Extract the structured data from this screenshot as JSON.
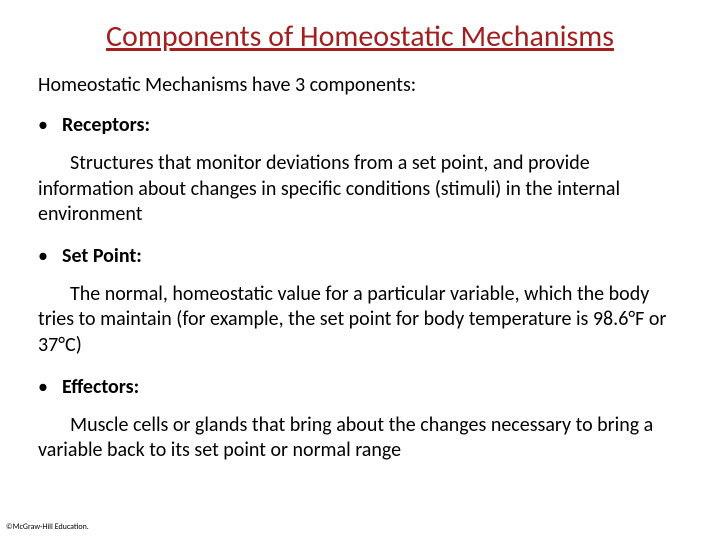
{
  "title_text": "Components of Homeostatic Mechanisms",
  "title_color": "#a31f1f",
  "intro_text": "Homeostatic Mechanisms have 3 components:",
  "items": [
    {
      "label": "Receptors:",
      "definition": "Structures that monitor deviations from a set point, and provide information about changes in specific conditions (stimuli) in the internal environment"
    },
    {
      "label": "Set Point:",
      "definition": "The normal, homeostatic value for a particular variable, which the body tries to maintain (for example, the set point for body temperature is 98.6°F or 37°C)"
    },
    {
      "label": "Effectors:",
      "definition": "Muscle cells or glands that bring about the changes necessary to bring a variable back to its set point or normal range"
    }
  ],
  "copyright_text": "©McGraw-Hill Education.",
  "background_color": "#ffffff",
  "text_color": "#000000",
  "title_fontsize": 30,
  "body_fontsize": 20,
  "copyright_fontsize": 8
}
